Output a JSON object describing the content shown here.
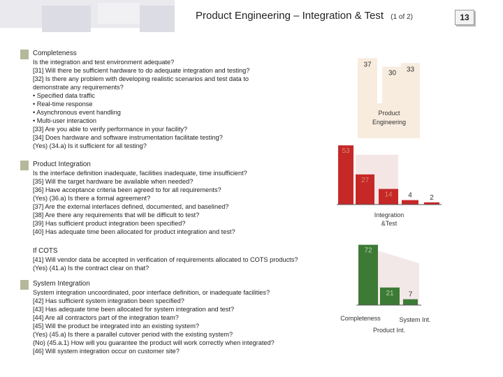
{
  "header": {
    "title": "Product Engineering – Integration & Test",
    "subtitle": "(1 of 2)",
    "page_number": "13"
  },
  "sections": [
    {
      "lines": [
        "Completeness",
        "Is the integration and test environment adequate?",
        "[31] Will there be sufficient hardware to do adequate integration and testing?",
        "[32] Is there any problem with developing realistic scenarios and test data to",
        "demonstrate any requirements?",
        "• Specified data traffic",
        "• Real-time response",
        "• Asynchronous event handling",
        "• Multi-user interaction",
        "[33] Are you able to verify performance in your facility?",
        "[34] Does hardware and software instrumentation facilitate testing?",
        "(Yes) (34.a) Is it sufficient for all testing?"
      ]
    },
    {
      "lines": [
        "Product Integration",
        "Is the interface definition inadequate, facilities inadequate, time insufficient?",
        "[35] Will the target hardware be available when needed?",
        "[36] Have acceptance criteria been agreed to for all requirements?",
        "(Yes) (36.a) Is there a formal agreement?",
        "[37] Are the external interfaces defined, documented, and baselined?",
        "[38] Are there any requirements that will be difficult to test?",
        "[39] Has sufficient product integration been specified?",
        "[40] Has adequate time been allocated for product integration and test?"
      ]
    },
    {
      "lines": [
        "If COTS",
        "[41] Will vendor data be accepted in verification of requirements allocated to COTS products?",
        "(Yes) (41.a) Is the contract clear on that?"
      ]
    },
    {
      "lines": [
        "System Integration",
        "System integration uncoordinated, poor interface definition, or inadequate facilities?",
        "[42] Has sufficient system integration been specified?",
        "[43] Has adequate time been allocated for system integration and test?",
        "[44] Are all contractors part of the integration team?",
        "[45] Will the product be integrated into an existing system?",
        "(Yes) (45.a) Is there a parallel cutover period with the existing system?",
        "(No) (45.a.1) How will you guarantee the product will work correctly when integrated?",
        "[46] Will system integration occur on customer site?"
      ]
    }
  ],
  "chart_data": {
    "type": "bar",
    "colors": {
      "band": "#f8ecdf",
      "band2": "#f5e6e6",
      "band3": "#f3e8e8",
      "axis": "#555555",
      "bar_red": "#c62828",
      "bar_green": "#3d7a36"
    },
    "groups": [
      {
        "label": "Product Engineering",
        "bar_values": [],
        "band_values": [
          37,
          30,
          33
        ],
        "band_labels": [
          "37",
          "30",
          "33"
        ]
      },
      {
        "label": "Integration &Test",
        "bar_values": [
          53,
          27,
          14,
          4,
          2
        ],
        "bar_labels": [
          "53",
          "27",
          "14",
          "4",
          "2"
        ]
      },
      {
        "label": "",
        "bar_values": [
          72,
          21,
          7
        ],
        "bar_labels": [
          "72",
          "21",
          "7"
        ]
      }
    ],
    "x_labels": [
      "Completeness",
      "System Int.",
      "Product Int."
    ]
  }
}
